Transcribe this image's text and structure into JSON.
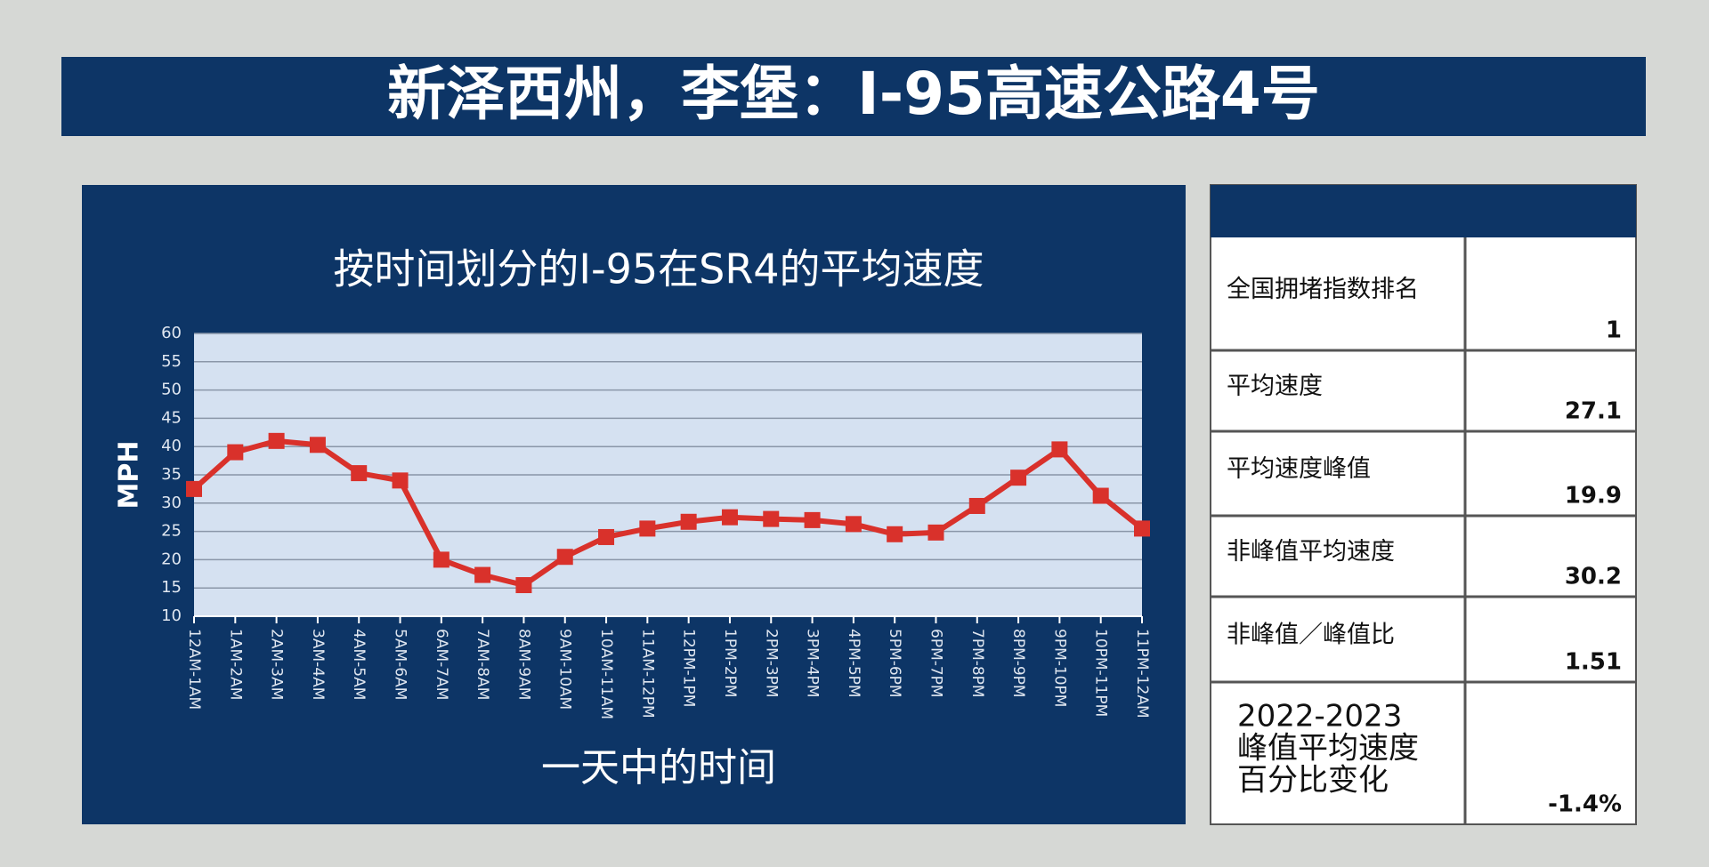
{
  "title": "新泽西州，李堡：I-95高速公路4号",
  "chart_data": {
    "type": "line",
    "title": "按时间划分的I-95在SR4的平均速度",
    "ylabel": "MPH",
    "xlabel": "一天中的时间",
    "categories": [
      "12AM-1AM",
      "1AM-2AM",
      "2AM-3AM",
      "3AM-4AM",
      "4AM-5AM",
      "5AM-6AM",
      "6AM-7AM",
      "7AM-8AM",
      "8AM-9AM",
      "9AM-10AM",
      "10AM-11AM",
      "11AM-12PM",
      "12PM-1PM",
      "1PM-2PM",
      "2PM-3PM",
      "3PM-4PM",
      "4PM-5PM",
      "5PM-6PM",
      "6PM-7PM",
      "7PM-8PM",
      "8PM-9PM",
      "9PM-10PM",
      "10PM-11PM",
      "11PM-12AM"
    ],
    "series": [
      {
        "color": "#d9312b",
        "values": [
          32.5,
          39,
          41,
          40.3,
          35.3,
          34,
          20,
          17.3,
          15.5,
          20.5,
          24,
          25.5,
          26.7,
          27.5,
          27.2,
          27,
          26.3,
          24.5,
          24.8,
          29.5,
          34.5,
          39.5,
          31.3,
          25.5
        ]
      }
    ],
    "ylim": [
      10,
      60
    ],
    "yticks": [
      10,
      15,
      20,
      25,
      30,
      35,
      40,
      45,
      50,
      55,
      60
    ],
    "grid": true
  },
  "table": {
    "rows": [
      [
        [
          "全国拥堵指数排名"
        ],
        "1"
      ],
      [
        [
          "平均速度"
        ],
        "27.1"
      ],
      [
        [
          "平均速度峰值"
        ],
        "19.9"
      ],
      [
        [
          "非峰值平均速度"
        ],
        "30.2"
      ],
      [
        [
          "非峰值／峰值比"
        ],
        "1.51"
      ],
      [
        [
          "2022-2023",
          "峰值平均速度",
          "百分比变化"
        ],
        "-1.4%"
      ]
    ]
  }
}
